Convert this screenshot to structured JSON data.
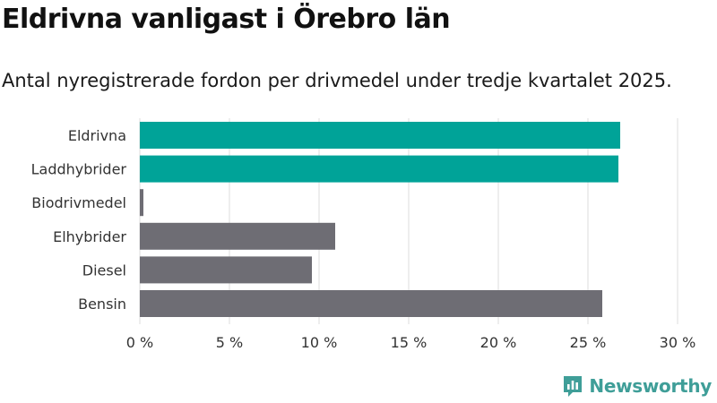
{
  "header": {
    "title": "Eldrivna vanligast i Örebro län",
    "subtitle": "Antal nyregistrerade fordon per drivmedel under tredje kvartalet 2025."
  },
  "brand": {
    "name": "Newsworthy",
    "icon": "newsworthy-logo-icon"
  },
  "colors": {
    "highlight": "#00a398",
    "default": "#6e6d74",
    "grid": "#dddddd",
    "brand": "#3f9e98"
  },
  "chart_data": {
    "type": "bar",
    "orientation": "horizontal",
    "categories": [
      "Eldrivna",
      "Laddhybrider",
      "Biodrivmedel",
      "Elhybrider",
      "Diesel",
      "Bensin"
    ],
    "values": [
      26.8,
      26.7,
      0.2,
      10.9,
      9.6,
      25.8
    ],
    "highlighted": [
      true,
      true,
      false,
      false,
      false,
      false
    ],
    "xlim": [
      0,
      30
    ],
    "xticks": [
      0,
      5,
      10,
      15,
      20,
      25,
      30
    ],
    "xtick_labels": [
      "0 %",
      "5 %",
      "10 %",
      "15 %",
      "20 %",
      "25 %",
      "30 %"
    ],
    "xlabel": "",
    "ylabel": "",
    "grid": true
  }
}
